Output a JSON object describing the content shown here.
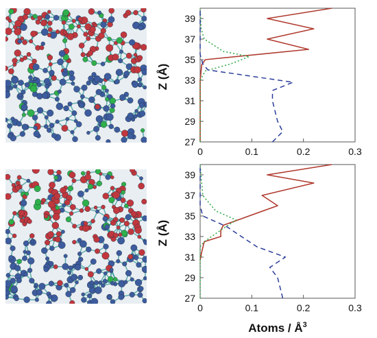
{
  "colors": {
    "series_red": "#b03a2e",
    "series_green": "#2aa640",
    "series_blue": "#2a3c9a",
    "atom_red": "#c0383e",
    "atom_blue": "#3d5c9e",
    "atom_green": "#2fb04b",
    "bond_teal": "#3a9c9c"
  },
  "snapshots": [
    {
      "name": "top-snapshot",
      "icon": "molecular-snapshot-icon",
      "interface_fraction": 0.44
    },
    {
      "name": "bottom-snapshot",
      "icon": "molecular-snapshot-icon",
      "interface_fraction": 0.52
    }
  ],
  "chart_data": [
    {
      "type": "line",
      "orientation": "vertical-profile",
      "ylabel": "Z (Å)",
      "xlabel": "",
      "xlim": [
        0,
        0.3
      ],
      "ylim": [
        27,
        40
      ],
      "xticks": [
        "0",
        "0.1",
        "0.2",
        "0.3"
      ],
      "yticks": [
        "27",
        "29",
        "31",
        "33",
        "35",
        "37",
        "39"
      ],
      "series": [
        {
          "color": "#b03a2e",
          "style": "solid",
          "points": [
            [
              0.0,
              27
            ],
            [
              0.0,
              29
            ],
            [
              0.0,
              31
            ],
            [
              0.0,
              33
            ],
            [
              0.003,
              34.5
            ],
            [
              0.01,
              35
            ],
            [
              0.21,
              36
            ],
            [
              0.13,
              37
            ],
            [
              0.22,
              38
            ],
            [
              0.13,
              39
            ],
            [
              0.255,
              40
            ]
          ]
        },
        {
          "color": "#2aa640",
          "style": "dotted",
          "points": [
            [
              0.0,
              27
            ],
            [
              0.0,
              33
            ],
            [
              0.01,
              33.9
            ],
            [
              0.06,
              34.6
            ],
            [
              0.095,
              35.3
            ],
            [
              0.045,
              35.8
            ],
            [
              0.008,
              37
            ],
            [
              0.002,
              38
            ],
            [
              0.0,
              40
            ]
          ]
        },
        {
          "color": "#2a3c9a",
          "style": "dashed",
          "points": [
            [
              0.14,
              27
            ],
            [
              0.16,
              28
            ],
            [
              0.15,
              29
            ],
            [
              0.145,
              30
            ],
            [
              0.14,
              31
            ],
            [
              0.14,
              32
            ],
            [
              0.18,
              32.8
            ],
            [
              0.015,
              34
            ],
            [
              0.005,
              34.6
            ],
            [
              0.0,
              35.5
            ],
            [
              0.0,
              40
            ]
          ]
        }
      ]
    },
    {
      "type": "line",
      "orientation": "vertical-profile",
      "ylabel": "Z (Å)",
      "xlabel": "Atoms / Å3",
      "xlim": [
        0,
        0.3
      ],
      "ylim": [
        27,
        40
      ],
      "xticks": [
        "0",
        "0.1",
        "0.2",
        "0.3"
      ],
      "yticks": [
        "27",
        "29",
        "31",
        "33",
        "35",
        "37",
        "39"
      ],
      "series": [
        {
          "color": "#b03a2e",
          "style": "solid",
          "points": [
            [
              0.0,
              30.7
            ],
            [
              0.003,
              31.5
            ],
            [
              0.008,
              32.5
            ],
            [
              0.04,
              33
            ],
            [
              0.04,
              33.6
            ],
            [
              0.045,
              34.1
            ],
            [
              0.15,
              36
            ],
            [
              0.12,
              37
            ],
            [
              0.22,
              38.2
            ],
            [
              0.13,
              39
            ],
            [
              0.255,
              40
            ]
          ]
        },
        {
          "color": "#2aa640",
          "style": "dotted",
          "points": [
            [
              0.0,
              27
            ],
            [
              0.0,
              32
            ],
            [
              0.008,
              32.5
            ],
            [
              0.045,
              33.8
            ],
            [
              0.07,
              34.6
            ],
            [
              0.03,
              35.5
            ],
            [
              0.005,
              37
            ],
            [
              0.0,
              40
            ]
          ]
        },
        {
          "color": "#2a3c9a",
          "style": "dashed",
          "points": [
            [
              0.16,
              27
            ],
            [
              0.155,
              28
            ],
            [
              0.15,
              29
            ],
            [
              0.135,
              30
            ],
            [
              0.165,
              31
            ],
            [
              0.11,
              32
            ],
            [
              0.05,
              34
            ],
            [
              0.005,
              35
            ],
            [
              0.0,
              36
            ],
            [
              0.0,
              40
            ]
          ]
        }
      ]
    }
  ]
}
